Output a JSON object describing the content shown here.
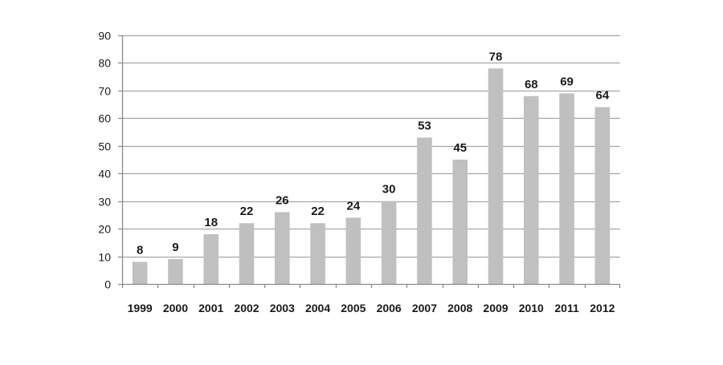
{
  "chart_data": {
    "type": "bar",
    "title": "",
    "xlabel": "",
    "ylabel": "",
    "categories": [
      "1999",
      "2000",
      "2001",
      "2002",
      "2003",
      "2004",
      "2005",
      "2006",
      "2007",
      "2008",
      "2009",
      "2010",
      "2011",
      "2012"
    ],
    "values": [
      8,
      9,
      18,
      22,
      26,
      22,
      24,
      30,
      53,
      45,
      78,
      68,
      69,
      64
    ],
    "data_labels": [
      "8",
      "9",
      "18",
      "22",
      "26",
      "22",
      "24",
      "30",
      "53",
      "45",
      "78",
      "68",
      "69",
      "64"
    ],
    "ylim": [
      0,
      90
    ],
    "yticks": [
      0,
      10,
      20,
      30,
      40,
      50,
      60,
      70,
      80,
      90
    ],
    "ytick_labels": [
      "0",
      "10",
      "20",
      "30",
      "40",
      "50",
      "60",
      "70",
      "80",
      "90"
    ],
    "grid": "horizontal",
    "legend": "none",
    "colors": {
      "bar": "#c0c0c0",
      "grid": "#a6a6a6",
      "axis": "#8c8c8c",
      "text": "#1a1a1a"
    }
  }
}
